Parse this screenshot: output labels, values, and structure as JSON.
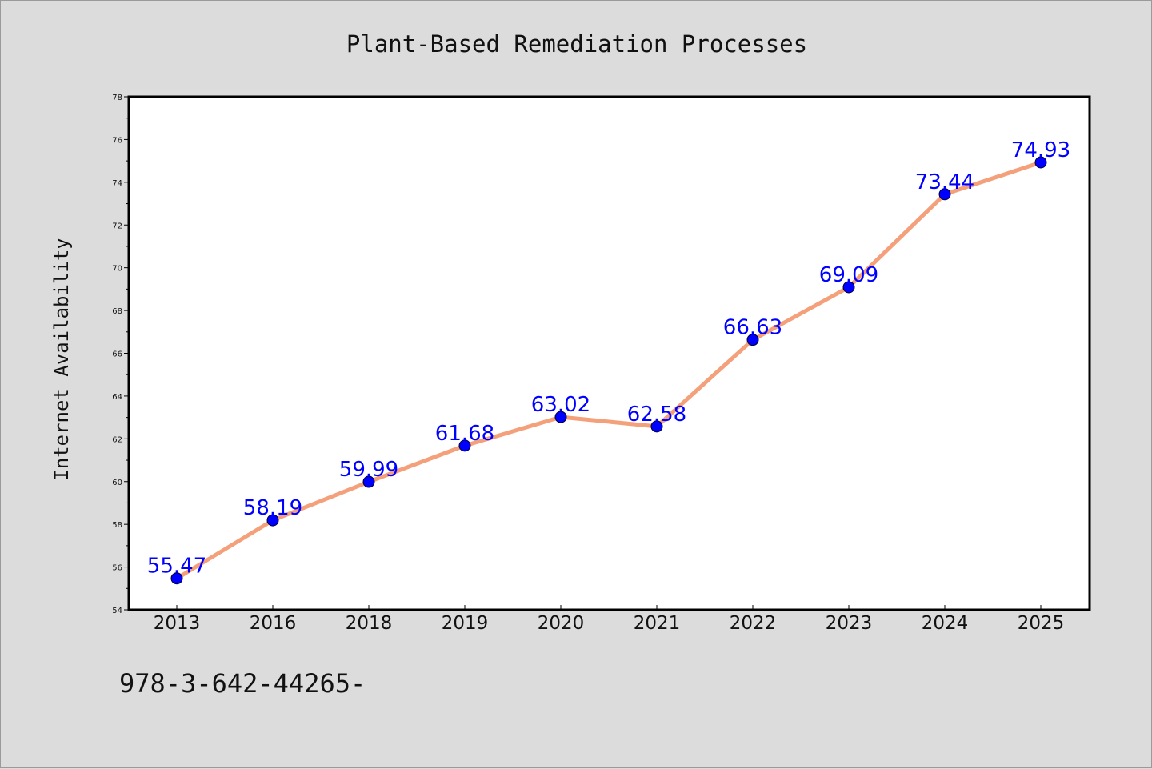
{
  "footer_text": "978-3-642-44265-",
  "chart_data": {
    "type": "line",
    "title": "Plant-Based Remediation Processes",
    "xlabel": "",
    "ylabel": "Internet Availability",
    "categories": [
      "2013",
      "2016",
      "2018",
      "2019",
      "2020",
      "2021",
      "2022",
      "2023",
      "2024",
      "2025"
    ],
    "values": [
      55.47,
      58.19,
      59.99,
      61.68,
      63.02,
      62.58,
      66.63,
      69.09,
      73.44,
      74.93
    ],
    "data_labels": [
      "55.47",
      "58.19",
      "59.99",
      "61.68",
      "63.02",
      "62.58",
      "66.63",
      "69.09",
      "73.44",
      "74.93"
    ],
    "ylim": [
      54,
      78
    ],
    "y_ticks": [
      "54",
      "56",
      "58",
      "60",
      "62",
      "64",
      "66",
      "68",
      "70",
      "72",
      "74",
      "76",
      "78"
    ],
    "grid": false,
    "legend": "none",
    "colors": {
      "line": "#f4a07a",
      "marker": "#0000ff",
      "data_label": "#0000ff",
      "plot_background": "#ffffff",
      "page_background": "#dcdcdc"
    }
  }
}
